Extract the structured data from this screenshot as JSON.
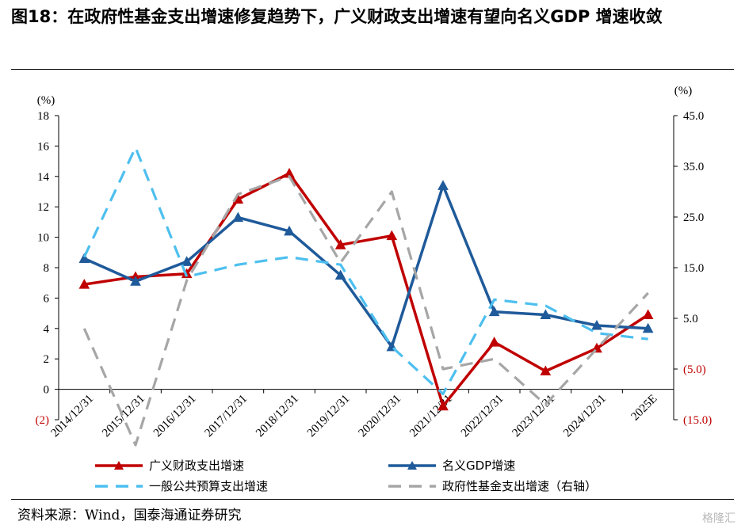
{
  "header": {
    "title": "图18：在政府性基金支出增速修复趋势下，广义财政支出增速有望向名义GDP 增速收敛"
  },
  "footer": {
    "source": "资料来源：Wind，国泰海通证券研究",
    "watermark": "格隆汇"
  },
  "chart_data": {
    "type": "line",
    "categories": [
      "2014/12/31",
      "2015/12/31",
      "2016/12/31",
      "2017/12/31",
      "2018/12/31",
      "2019/12/31",
      "2020/12/31",
      "2021/12/31",
      "2022/12/31",
      "2023/12/31",
      "2024/12/31",
      "2025E"
    ],
    "left_axis": {
      "unit": "(%)",
      "range": [
        -2,
        18
      ],
      "ticks": [
        18,
        16,
        14,
        12,
        10,
        8,
        6,
        4,
        2,
        0,
        -2
      ],
      "tick_labels": [
        "18",
        "16",
        "14",
        "12",
        "10",
        "8",
        "6",
        "4",
        "2",
        "0",
        "(2)"
      ]
    },
    "right_axis": {
      "unit": "(%)",
      "range": [
        -15,
        45
      ],
      "ticks": [
        45,
        35,
        25,
        15,
        5,
        -5,
        -15
      ],
      "tick_labels": [
        "45.0",
        "35.0",
        "25.0",
        "15.0",
        "5.0",
        "(5.0)",
        "(15.0)"
      ]
    },
    "series": [
      {
        "name": "广义财政支出增速",
        "axis": "left",
        "color": "#c00000",
        "style": "solid-triangle",
        "values": [
          6.9,
          7.4,
          7.6,
          12.5,
          14.2,
          9.5,
          10.1,
          -1.1,
          3.1,
          1.2,
          2.7,
          4.9
        ]
      },
      {
        "name": "名义GDP增速",
        "axis": "left",
        "color": "#1f5a9a",
        "style": "solid-triangle",
        "values": [
          8.6,
          7.1,
          8.4,
          11.3,
          10.4,
          7.5,
          2.8,
          13.4,
          5.1,
          4.9,
          4.2,
          4.0
        ]
      },
      {
        "name": "一般公共预算支出增速",
        "axis": "left",
        "color": "#4dbfef",
        "style": "dashed",
        "values": [
          8.7,
          15.9,
          7.4,
          8.2,
          8.7,
          8.2,
          2.8,
          -0.3,
          5.9,
          5.5,
          3.7,
          3.3
        ]
      },
      {
        "name": "政府性基金支出增速（右轴）",
        "axis": "right",
        "color": "#a6a6a6",
        "style": "dashed",
        "values": [
          3,
          -20,
          12.5,
          29.5,
          33,
          16,
          30,
          -5,
          -3,
          -12,
          -1,
          10
        ]
      }
    ],
    "legend": "bottom"
  }
}
